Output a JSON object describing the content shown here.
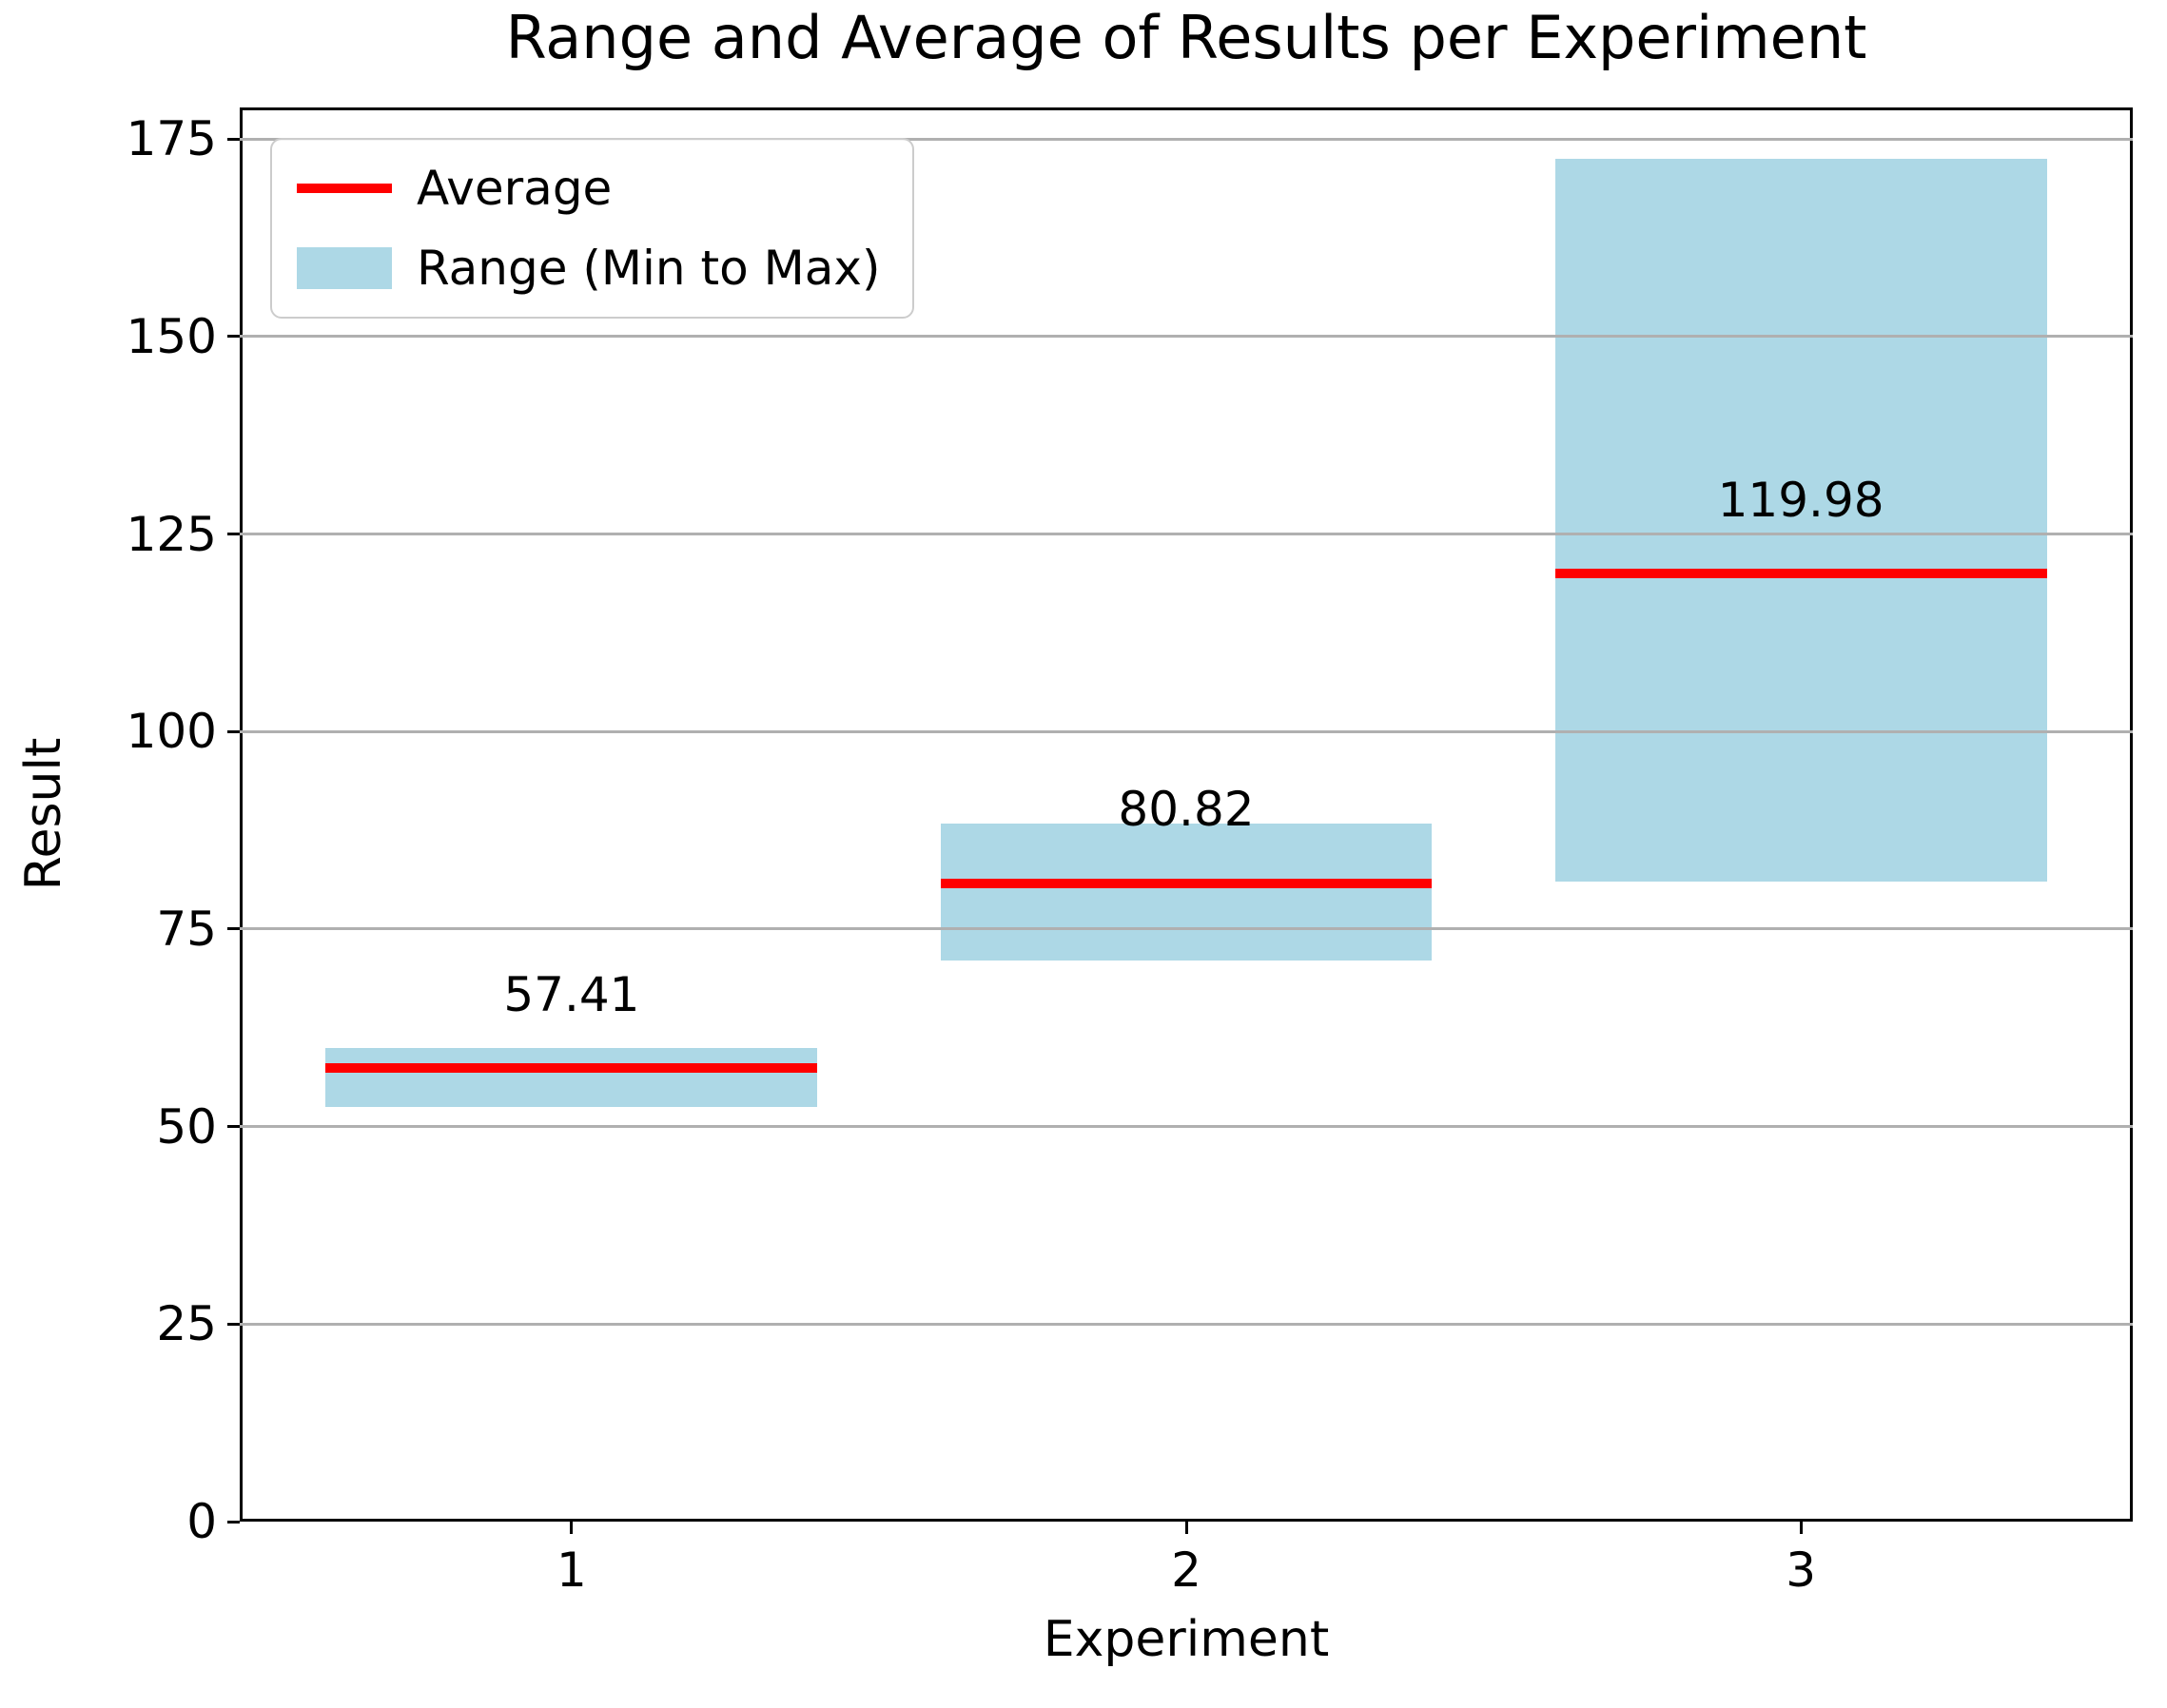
{
  "figure": {
    "background": "#ffffff"
  },
  "chart_data": {
    "type": "bar",
    "title": "Range and Average of Results per Experiment",
    "xlabel": "Experiment",
    "ylabel": "Result",
    "categories": [
      "1",
      "2",
      "3"
    ],
    "series": [
      {
        "name": "Average",
        "type": "line",
        "color": "#ff0000",
        "values": [
          57.41,
          80.82,
          119.98
        ]
      },
      {
        "name": "Range (Min to Max)",
        "type": "range-bar",
        "color": "#add8e6",
        "min": [
          52.5,
          71.0,
          81.0
        ],
        "max": [
          60.0,
          88.3,
          172.5
        ]
      }
    ],
    "annotations": [
      "57.41",
      "80.82",
      "119.98"
    ],
    "ylim": [
      0,
      179
    ],
    "yticks": [
      0,
      25,
      50,
      75,
      100,
      125,
      150,
      175
    ],
    "grid": true,
    "legend": {
      "position": "upper left",
      "entries": [
        {
          "label": "Average",
          "swatch": "line",
          "color": "#ff0000"
        },
        {
          "label": "Range (Min to Max)",
          "swatch": "patch",
          "color": "#add8e6"
        }
      ]
    },
    "colors": {
      "grid": "#b0b0b0",
      "spine": "#000000",
      "text": "#000000",
      "background": "#ffffff"
    }
  }
}
